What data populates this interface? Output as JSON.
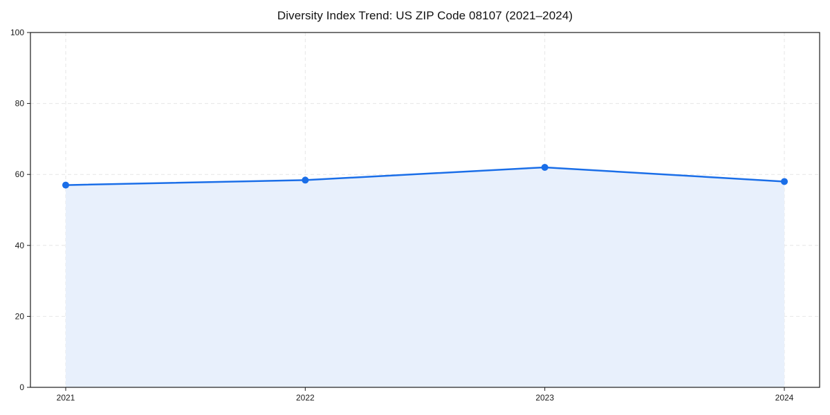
{
  "chart_data": {
    "type": "line",
    "title": "Diversity Index Trend: US ZIP Code 08107 (2021–2024)",
    "series_name": "Diversity Index",
    "x": [
      2021,
      2022,
      2023,
      2024
    ],
    "values": [
      57.0,
      58.4,
      62.0,
      58.0
    ],
    "x_tick_labels": [
      "2021",
      "2022",
      "2023",
      "2024"
    ],
    "y_ticks": [
      0,
      20,
      40,
      60,
      80,
      100
    ],
    "ylim": [
      0,
      100
    ],
    "xlabel": "",
    "ylabel": "",
    "grid": true,
    "grid_style": "dashed",
    "legend": false,
    "area_fill": true,
    "markers": true
  },
  "style": {
    "line_color": "#1a6ee8",
    "marker_color": "#1a6ee8",
    "fill_color": "#e8f0fc",
    "grid_color": "#e6e6e6",
    "spine_color": "#1a1a1a",
    "text_color": "#1a1a1a",
    "background": "#ffffff"
  }
}
